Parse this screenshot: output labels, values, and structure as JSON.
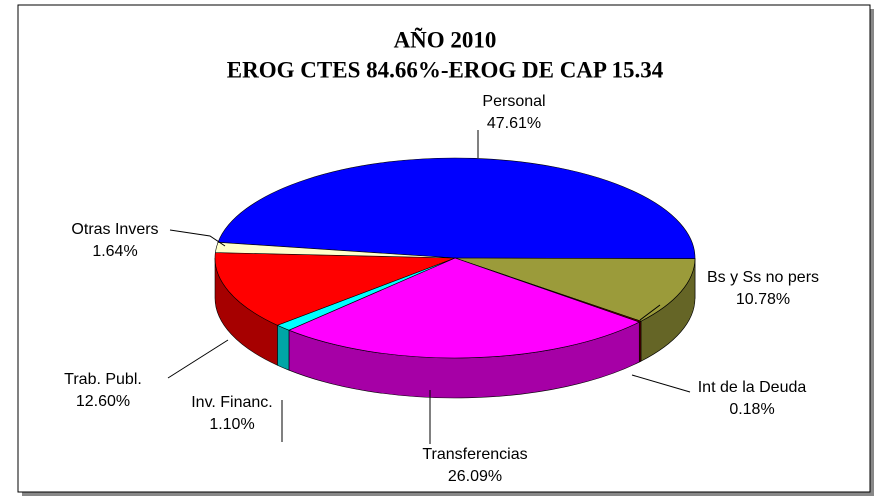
{
  "chart_data": {
    "type": "pie3d",
    "title": "AÑO 2010",
    "subtitle": "EROG CTES 84.66%-EROG DE CAP 15.34",
    "categories": [
      "Personal",
      "Bs y Ss no pers",
      "Int de la Deuda",
      "Transferencias",
      "Inv. Financ.",
      "Trab. Publ.",
      "Otras Invers"
    ],
    "values": [
      47.61,
      10.78,
      0.18,
      26.09,
      1.1,
      12.6,
      1.64
    ],
    "value_labels": [
      "47.61%",
      "10.78%",
      "0.18%",
      "26.09%",
      "1.10%",
      "12.60%",
      "1.64%"
    ],
    "colors": [
      "#0000ff",
      "#9b9b3a",
      "#800000",
      "#ff00ff",
      "#00ffff",
      "#ff0000",
      "#ffffcc"
    ]
  }
}
